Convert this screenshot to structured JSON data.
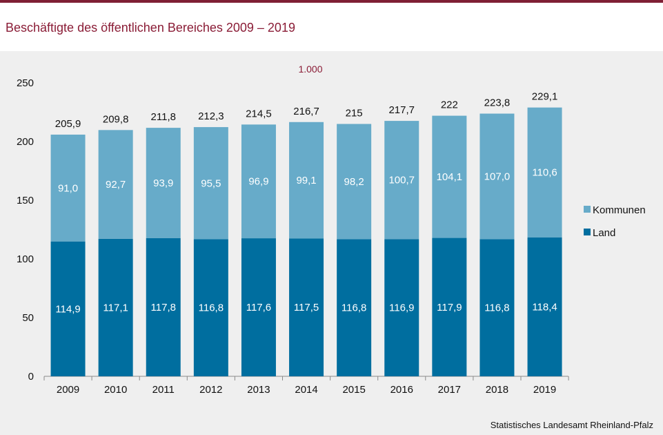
{
  "title": "Beschäftigte des öffentlichen Bereiches 2009 – 2019",
  "unit_label": "1.000",
  "source": "Statistisches Landesamt Rheinland-Pfalz",
  "colors": {
    "land": "#006e9f",
    "kommunen": "#67abc9",
    "accent": "#8a1c36"
  },
  "chart_data": {
    "type": "bar",
    "stacked": true,
    "categories": [
      "2009",
      "2010",
      "2011",
      "2012",
      "2013",
      "2014",
      "2015",
      "2016",
      "2017",
      "2018",
      "2019"
    ],
    "series": [
      {
        "name": "Land",
        "values": [
          114.9,
          117.1,
          117.8,
          116.8,
          117.6,
          117.5,
          116.8,
          116.9,
          117.9,
          116.8,
          118.4
        ],
        "labels": [
          "114,9",
          "117,1",
          "117,8",
          "116,8",
          "117,6",
          "117,5",
          "116,8",
          "116,9",
          "117,9",
          "116,8",
          "118,4"
        ]
      },
      {
        "name": "Kommunen",
        "values": [
          91.0,
          92.7,
          93.9,
          95.5,
          96.9,
          99.1,
          98.2,
          100.7,
          104.1,
          107.0,
          110.6
        ],
        "labels": [
          "91,0",
          "92,7",
          "93,9",
          "95,5",
          "96,9",
          "99,1",
          "98,2",
          "100,7",
          "104,1",
          "107,0",
          "110,6"
        ]
      }
    ],
    "totals": [
      205.9,
      209.8,
      211.8,
      212.3,
      214.5,
      216.7,
      215,
      217.7,
      222,
      223.8,
      229.1
    ],
    "total_labels": [
      "205,9",
      "209,8",
      "211,8",
      "212,3",
      "214,5",
      "216,7",
      "215",
      "217,7",
      "222",
      "223,8",
      "229,1"
    ],
    "yticks": [
      0,
      50,
      100,
      150,
      200,
      250
    ],
    "ylim": [
      0,
      250
    ],
    "legend": "right",
    "grid": false
  }
}
